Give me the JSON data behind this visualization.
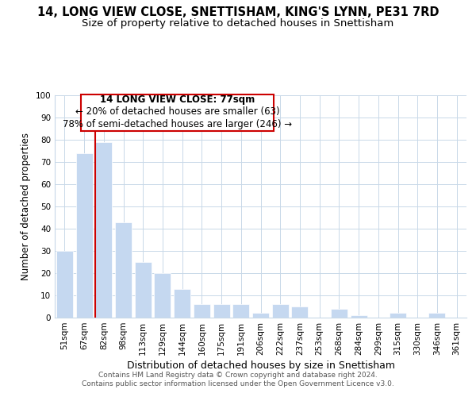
{
  "title": "14, LONG VIEW CLOSE, SNETTISHAM, KING'S LYNN, PE31 7RD",
  "subtitle": "Size of property relative to detached houses in Snettisham",
  "xlabel": "Distribution of detached houses by size in Snettisham",
  "ylabel": "Number of detached properties",
  "footer_line1": "Contains HM Land Registry data © Crown copyright and database right 2024.",
  "footer_line2": "Contains public sector information licensed under the Open Government Licence v3.0.",
  "annotation_title": "14 LONG VIEW CLOSE: 77sqm",
  "annotation_line1": "← 20% of detached houses are smaller (63)",
  "annotation_line2": "78% of semi-detached houses are larger (246) →",
  "bar_labels": [
    "51sqm",
    "67sqm",
    "82sqm",
    "98sqm",
    "113sqm",
    "129sqm",
    "144sqm",
    "160sqm",
    "175sqm",
    "191sqm",
    "206sqm",
    "222sqm",
    "237sqm",
    "253sqm",
    "268sqm",
    "284sqm",
    "299sqm",
    "315sqm",
    "330sqm",
    "346sqm",
    "361sqm"
  ],
  "bar_values": [
    30,
    74,
    79,
    43,
    25,
    20,
    13,
    6,
    6,
    6,
    2,
    6,
    5,
    0,
    4,
    1,
    0,
    2,
    0,
    2,
    0
  ],
  "bar_color": "#c5d8f0",
  "red_line_color": "#cc0000",
  "red_line_bar_index": 2,
  "ylim": [
    0,
    100
  ],
  "yticks": [
    0,
    10,
    20,
    30,
    40,
    50,
    60,
    70,
    80,
    90,
    100
  ],
  "bg_color": "#ffffff",
  "grid_color": "#c8d8e8",
  "annotation_box_edgecolor": "#cc0000",
  "title_fontsize": 10.5,
  "subtitle_fontsize": 9.5,
  "xlabel_fontsize": 9,
  "ylabel_fontsize": 8.5,
  "tick_fontsize": 7.5,
  "annotation_fontsize": 8.5,
  "footer_fontsize": 6.5
}
